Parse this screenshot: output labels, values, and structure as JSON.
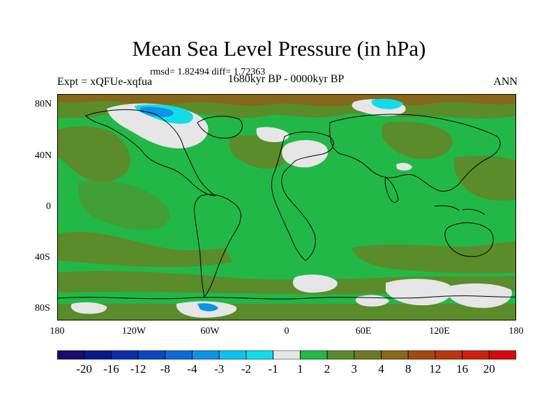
{
  "title": "Mean Sea Level Pressure (in hPa)",
  "stats": "rmsd= 1.82494 diff= 1.72363",
  "expt": "Expt = xQFUe-xqfua",
  "period": "1680kyr BP - 0000kyr BP",
  "season": "ANN",
  "lat_ticks": [
    "80N",
    "40N",
    "0",
    "40S",
    "80S"
  ],
  "lon_ticks": [
    "180",
    "120W",
    "60W",
    "0",
    "60E",
    "120E",
    "180"
  ],
  "colorbar": {
    "colors": [
      "#1a0a70",
      "#0a1a8c",
      "#0a2ea6",
      "#0a48c0",
      "#0a6ad6",
      "#0c93e6",
      "#0cc0f0",
      "#10dde8",
      "#e6e6e6",
      "#22b848",
      "#5a8c2a",
      "#6e7a22",
      "#866818",
      "#a04a12",
      "#b8380e",
      "#cc220a",
      "#d60a0a"
    ],
    "labels": [
      "-20",
      "-16",
      "-12",
      "-8",
      "-4",
      "-3",
      "-2",
      "-1",
      "1",
      "2",
      "3",
      "4",
      "8",
      "12",
      "16",
      "20"
    ]
  },
  "colors": {
    "ocean_green": "#22b848",
    "olive": "#5a8c2a",
    "brown": "#866818",
    "gray": "#e6e6e6",
    "cyan": "#10dde8",
    "blue": "#0c93e6"
  }
}
